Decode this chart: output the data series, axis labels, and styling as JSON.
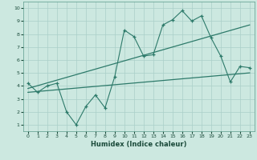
{
  "xlabel": "Humidex (Indice chaleur)",
  "xlim": [
    -0.5,
    23.5
  ],
  "ylim": [
    0.5,
    10.5
  ],
  "xticks": [
    0,
    1,
    2,
    3,
    4,
    5,
    6,
    7,
    8,
    9,
    10,
    11,
    12,
    13,
    14,
    15,
    16,
    17,
    18,
    19,
    20,
    21,
    22,
    23
  ],
  "yticks": [
    1,
    2,
    3,
    4,
    5,
    6,
    7,
    8,
    9,
    10
  ],
  "bg_color": "#cce8e0",
  "grid_color": "#aacfc8",
  "line_color": "#2d7a6a",
  "zigzag_x": [
    0,
    1,
    2,
    3,
    4,
    5,
    6,
    7,
    8,
    9,
    10,
    11,
    12,
    13,
    14,
    15,
    16,
    17,
    18,
    19,
    20,
    21,
    22,
    23
  ],
  "zigzag_y": [
    4.2,
    3.5,
    4.0,
    4.2,
    2.0,
    1.0,
    2.4,
    3.3,
    2.3,
    4.7,
    8.3,
    7.8,
    6.3,
    6.4,
    8.7,
    9.1,
    9.8,
    9.0,
    9.4,
    7.7,
    6.3,
    4.3,
    5.5,
    5.4
  ],
  "trend1_x": [
    0,
    23
  ],
  "trend1_y": [
    3.8,
    8.7
  ],
  "trend2_x": [
    0,
    23
  ],
  "trend2_y": [
    3.5,
    5.0
  ]
}
